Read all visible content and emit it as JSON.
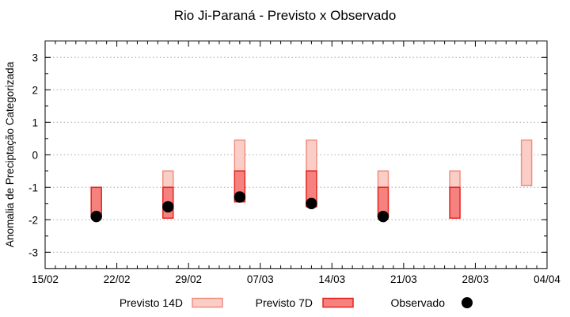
{
  "chart_data": {
    "type": "bar",
    "title": "Rio Ji-Paraná - Previsto x Observado",
    "ylabel": "Anomalia de Preciptação Categorizada",
    "xlabel": "",
    "x_axis": {
      "tick_labels": [
        "15/02",
        "22/02",
        "29/02",
        "07/03",
        "14/03",
        "21/03",
        "28/03",
        "04/04"
      ],
      "tick_days": [
        0,
        7,
        14,
        21,
        28,
        35,
        42,
        49
      ],
      "minor_tick_interval_days": 1,
      "range_days": [
        0,
        49
      ]
    },
    "y_axis": {
      "ticks": [
        -3,
        -2,
        -1,
        0,
        1,
        2,
        3
      ],
      "minor_tick_interval": 0.5,
      "range": [
        -3.5,
        3.5
      ],
      "grid": "horizontal dotted lines at integer ticks"
    },
    "legend": {
      "position": "bottom-center",
      "items": [
        {
          "label": "Previsto 14D",
          "type": "box",
          "fill": "#FACDC7",
          "border": "#F0907F"
        },
        {
          "label": "Previsto 7D",
          "type": "box",
          "fill": "#F5827E",
          "border": "#E62420"
        },
        {
          "label": "Observado",
          "type": "dot",
          "fill": "#000000"
        }
      ]
    },
    "colors": {
      "previsto_14d_fill": "#FACDC7",
      "previsto_14d_border": "#F0907F",
      "previsto_7d_fill": "#F5827E",
      "previsto_7d_border": "#E62420",
      "observado": "#000000",
      "gridline": "#A8A8A8",
      "axis": "#000000",
      "background": "#FFFFFF"
    },
    "groups": [
      {
        "day": 5,
        "previsto_14d": null,
        "previsto_7d": [
          -1.0,
          -1.9
        ],
        "observado": -1.9
      },
      {
        "day": 12,
        "previsto_14d": [
          -0.5,
          -1.0
        ],
        "previsto_7d": [
          -1.0,
          -1.95
        ],
        "observado": -1.6
      },
      {
        "day": 19,
        "previsto_14d": [
          0.45,
          -0.5
        ],
        "previsto_7d": [
          -0.5,
          -1.45
        ],
        "observado": -1.3
      },
      {
        "day": 26,
        "previsto_14d": [
          0.45,
          -0.5
        ],
        "previsto_7d": [
          -0.5,
          -1.6
        ],
        "observado": -1.5
      },
      {
        "day": 33,
        "previsto_14d": [
          -0.5,
          -1.0
        ],
        "previsto_7d": [
          -1.0,
          -1.9
        ],
        "observado": -1.9
      },
      {
        "day": 40,
        "previsto_14d": [
          -0.5,
          -1.0
        ],
        "previsto_7d": [
          -1.0,
          -1.95
        ],
        "observado": null
      },
      {
        "day": 47,
        "previsto_14d": [
          0.45,
          -0.95
        ],
        "previsto_7d": null,
        "observado": null
      }
    ]
  }
}
